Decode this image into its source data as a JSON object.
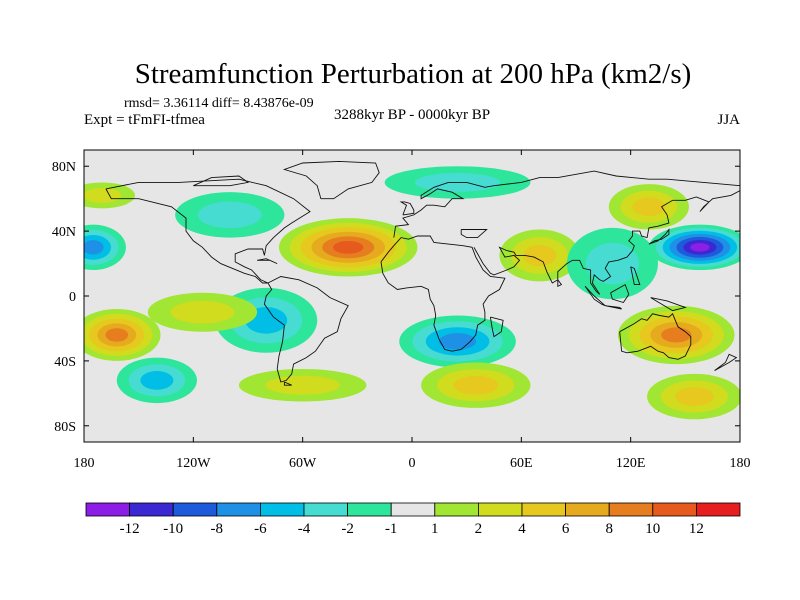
{
  "chart_data": {
    "type": "heatmap",
    "title": "Streamfunction Perturbation at 200 hPa (km2/s)",
    "stats_text": "rmsd= 3.36114 diff= 8.43876e-09",
    "experiment": "Expt = tFmFI-tfmea",
    "period": "3288kyr BP - 0000kyr BP",
    "season": "JJA",
    "x_range": [
      -180,
      180
    ],
    "y_range": [
      -90,
      90
    ],
    "x_ticks": [
      {
        "value": -180,
        "label": "180"
      },
      {
        "value": -120,
        "label": "120W"
      },
      {
        "value": -60,
        "label": "60W"
      },
      {
        "value": 0,
        "label": "0"
      },
      {
        "value": 60,
        "label": "60E"
      },
      {
        "value": 120,
        "label": "120E"
      },
      {
        "value": 180,
        "label": "180"
      }
    ],
    "y_ticks": [
      {
        "value": 80,
        "label": "80N"
      },
      {
        "value": 40,
        "label": "40N"
      },
      {
        "value": 0,
        "label": "0"
      },
      {
        "value": -40,
        "label": "40S"
      },
      {
        "value": -80,
        "label": "80S"
      }
    ],
    "colorbar": {
      "colors": [
        "#8c1ee6",
        "#3c28d2",
        "#1e5adc",
        "#1e91e6",
        "#00bee6",
        "#46dcd2",
        "#2ee69b",
        "#e6e6e6",
        "#a0e632",
        "#d2dc1e",
        "#e6c81e",
        "#e6aa1e",
        "#e67d1e",
        "#e65a1e",
        "#e61e1e"
      ],
      "level_labels": [
        {
          "after_box": 1,
          "label": "-12"
        },
        {
          "after_box": 2,
          "label": "-10"
        },
        {
          "after_box": 3,
          "label": "-8"
        },
        {
          "after_box": 4,
          "label": "-6"
        },
        {
          "after_box": 5,
          "label": "-4"
        },
        {
          "after_box": 6,
          "label": "-2"
        },
        {
          "after_box": 7,
          "label": "-1"
        },
        {
          "after_box": 8,
          "label": "1"
        },
        {
          "after_box": 9,
          "label": "2"
        },
        {
          "after_box": 10,
          "label": "4"
        },
        {
          "after_box": 11,
          "label": "6"
        },
        {
          "after_box": 12,
          "label": "8"
        },
        {
          "after_box": 13,
          "label": "10"
        },
        {
          "after_box": 14,
          "label": "12"
        }
      ]
    },
    "field_anomalies": [
      {
        "lon": -35,
        "lat": 30,
        "rx": 38,
        "ry": 18,
        "value": 11
      },
      {
        "lon": -80,
        "lat": -15,
        "rx": 28,
        "ry": 20,
        "value": -4
      },
      {
        "lon": 25,
        "lat": -28,
        "rx": 32,
        "ry": 16,
        "value": -6
      },
      {
        "lon": 158,
        "lat": 30,
        "rx": 28,
        "ry": 14,
        "value": -12
      },
      {
        "lon": -175,
        "lat": 30,
        "rx": 18,
        "ry": 14,
        "value": -6
      },
      {
        "lon": -162,
        "lat": -24,
        "rx": 24,
        "ry": 16,
        "value": 9
      },
      {
        "lon": -140,
        "lat": -52,
        "rx": 22,
        "ry": 14,
        "value": -5
      },
      {
        "lon": 145,
        "lat": -24,
        "rx": 32,
        "ry": 18,
        "value": 9
      },
      {
        "lon": 35,
        "lat": -55,
        "rx": 30,
        "ry": 14,
        "value": 4
      },
      {
        "lon": 155,
        "lat": -62,
        "rx": 26,
        "ry": 14,
        "value": 4
      },
      {
        "lon": 130,
        "lat": 55,
        "rx": 22,
        "ry": 14,
        "value": 4
      },
      {
        "lon": 70,
        "lat": 25,
        "rx": 22,
        "ry": 16,
        "value": 4
      },
      {
        "lon": -100,
        "lat": 50,
        "rx": 30,
        "ry": 14,
        "value": -2
      },
      {
        "lon": -170,
        "lat": 62,
        "rx": 18,
        "ry": 8,
        "value": 2
      },
      {
        "lon": 25,
        "lat": 70,
        "rx": 40,
        "ry": 10,
        "value": -2
      },
      {
        "lon": 110,
        "lat": 20,
        "rx": 25,
        "ry": 22,
        "value": -3
      },
      {
        "lon": -115,
        "lat": -10,
        "rx": 30,
        "ry": 12,
        "value": 2
      },
      {
        "lon": -60,
        "lat": -55,
        "rx": 35,
        "ry": 10,
        "value": 2
      }
    ]
  }
}
